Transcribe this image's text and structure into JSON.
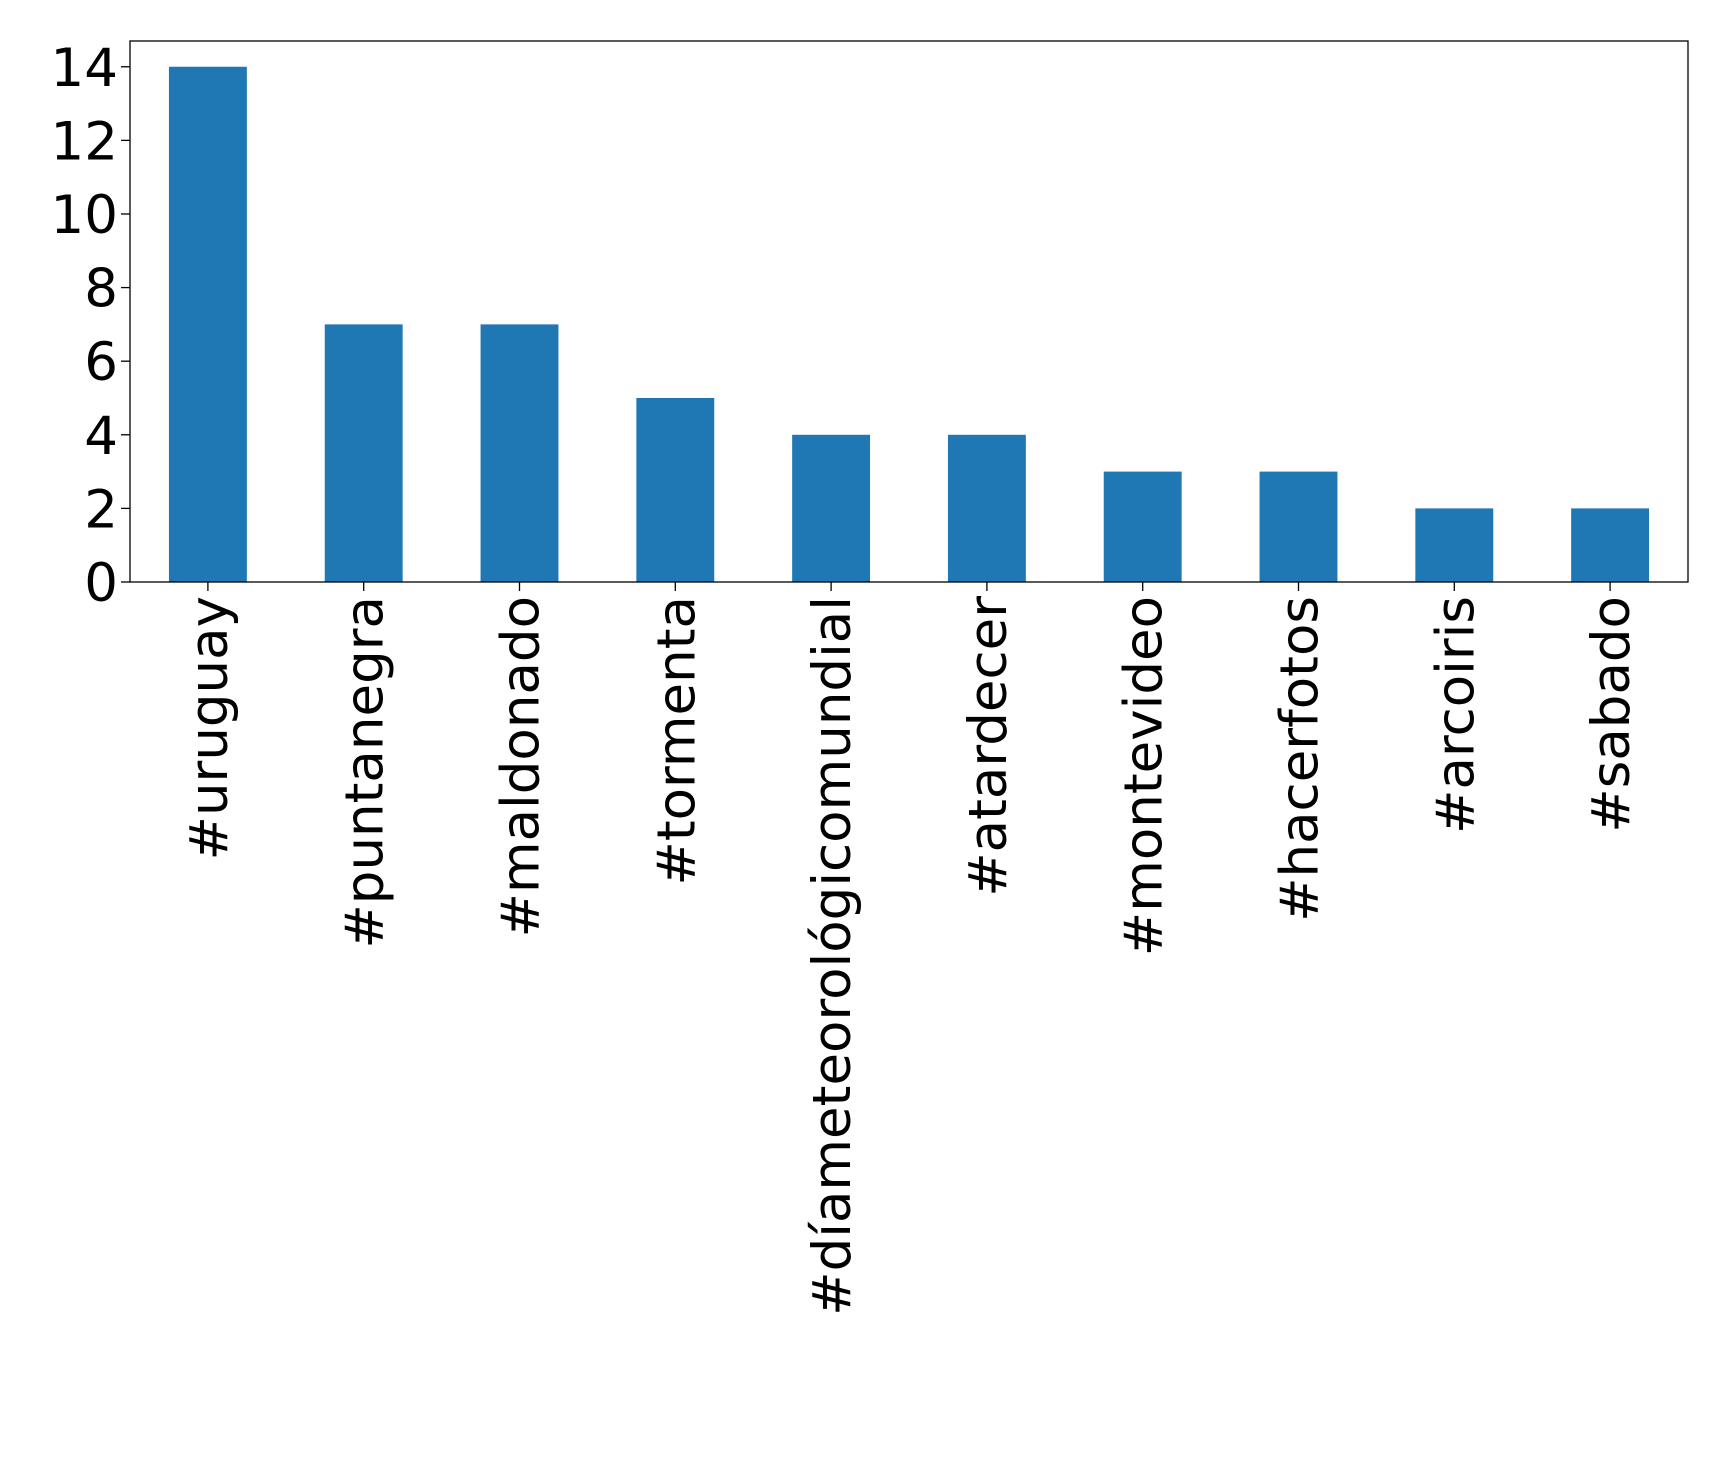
{
  "chart_data": {
    "type": "bar",
    "categories": [
      "#uruguay",
      "#puntanegra",
      "#maldonado",
      "#tormenta",
      "#díameteorológicomundial",
      "#atardecer",
      "#montevideo",
      "#hacerfotos",
      "#arcoiris",
      "#sabado"
    ],
    "values": [
      14,
      7,
      7,
      5,
      4,
      4,
      3,
      3,
      2,
      2
    ],
    "color": "#1f77b4",
    "ylim": [
      0,
      14.7
    ],
    "yticks": [
      0,
      2,
      4,
      6,
      8,
      10,
      12,
      14
    ],
    "grid": false
  }
}
